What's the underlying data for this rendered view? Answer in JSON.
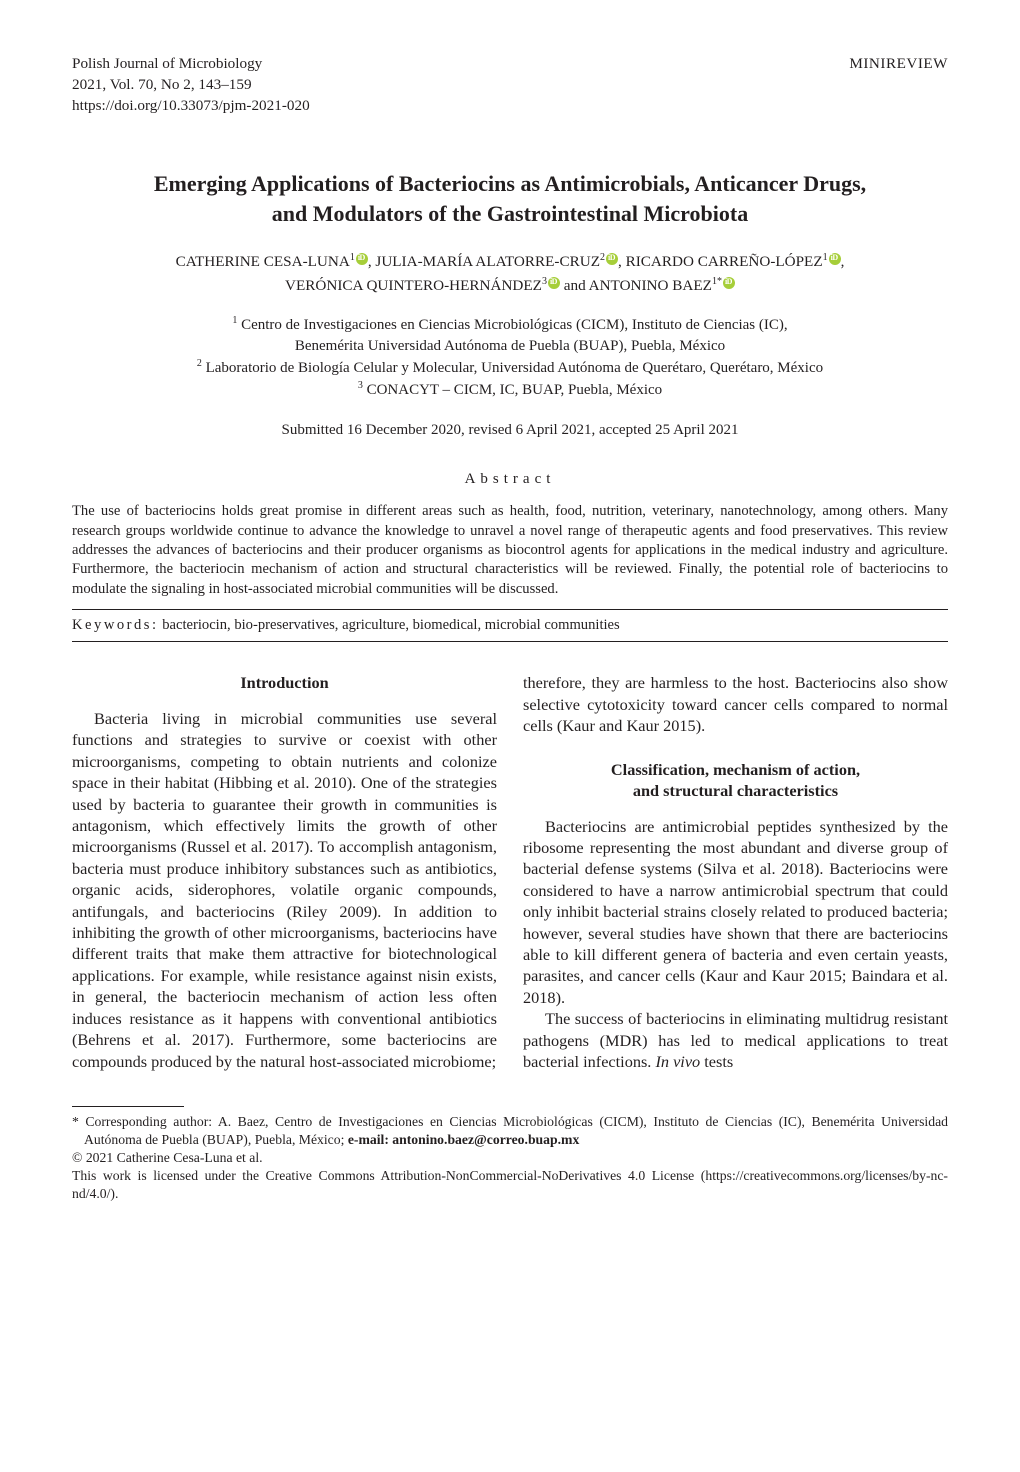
{
  "header": {
    "journal": "Polish Journal of Microbiology",
    "issue": "2021, Vol. 70, No 2, 143–159",
    "doi": "https://doi.org/10.33073/pjm-2021-020",
    "article_type": "MINIREVIEW"
  },
  "title": {
    "line1": "Emerging Applications of Bacteriocins as Antimicrobials, Anticancer Drugs,",
    "line2": "and Modulators of the Gastrointestinal Microbiota"
  },
  "authors": {
    "a1_name": "CATHERINE CESA-LUNA",
    "a1_aff": "1",
    "a2_name": "JULIA-MARÍA ALATORRE-CRUZ",
    "a2_aff": "2",
    "a3_name": "RICARDO CARREÑO-LÓPEZ",
    "a3_aff": "1",
    "a4_name": "VERÓNICA QUINTERO-HERNÁNDEZ",
    "a4_aff": "3",
    "a5_name": "ANTONINO BAEZ",
    "a5_aff": "1",
    "and": " and ",
    "sep": ", "
  },
  "affiliations": {
    "l1": " Centro de Investigaciones en Ciencias Microbiológicas (CICM), Instituto de Ciencias (IC),",
    "l2": "Benemérita Universidad Autónoma de Puebla (BUAP), Puebla, México",
    "l3": " Laboratorio de Biología Celular y Molecular, Universidad Autónoma de Querétaro, Querétaro, México",
    "l4": " CONACYT – CICM, IC, BUAP, Puebla, México",
    "n1": "1",
    "n2": "2",
    "n3": "3"
  },
  "submitted": "Submitted 16 December 2020, revised 6 April 2021, accepted 25 April 2021",
  "abstract": {
    "label": "Abstract",
    "text": "The use of bacteriocins holds great promise in different areas such as health, food, nutrition, veterinary, nanotechnology, among others. Many research groups worldwide continue to advance the knowledge to unravel a novel range of therapeutic agents and food preservatives. This review addresses the advances of bacteriocins and their producer organisms as biocontrol agents for applications in the medical industry and agriculture. Furthermore, the bacteriocin mechanism of action and structural characteristics will be reviewed. Finally, the potential role of bacteriocins to modulate the signaling in host-associated microbial communities will be discussed."
  },
  "keywords": {
    "label": "Keywords:",
    "text": "  bacteriocin, bio-preservatives, agriculture, biomedical, microbial communities"
  },
  "sections": {
    "intro_heading": "Introduction",
    "intro_p1": "Bacteria living in microbial communities use several functions and strategies to survive or coexist with other microorganisms, competing to obtain nutrients and colonize space in their habitat (Hibbing et al. 2010). One of the strategies used by bacteria to guarantee their growth in communities is antagonism, which effectively limits the growth of other microorganisms (Russel et al. 2017). To accomplish antagonism, bacteria must produce inhibitory substances such as antibiotics, organic acids, siderophores, volatile organic compounds, antifungals, and bacteriocins (Riley 2009). In addition to inhibiting the growth of other microorganisms, bacteriocins have different traits that make them attractive for biotechnological applications. For example, while resistance against nisin exists, in general, the bacteriocin mechanism of action less often induces resistance as it happens with conventional antibiotics (Behrens et al. 2017). Furthermore, some bacteriocins are compounds produced by the natural host-associated microbiome;",
    "col2_lead": "therefore, they are harmless to the host. Bacteriocins also show selective cytotoxicity toward cancer cells compared to normal cells (Kaur and Kaur 2015).",
    "class_heading_l1": "Classification, mechanism of action,",
    "class_heading_l2": "and structural characteristics",
    "class_p1": "Bacteriocins are antimicrobial peptides synthesized by the ribosome representing the most abundant and diverse group of bacterial defense systems (Silva et al. 2018). Bacteriocins were considered to have a narrow antimicrobial spectrum that could only inhibit bacterial strains closely related to produced bacteria; however, several studies have shown that there are bacteriocins able to kill different genera of bacteria and even certain yeasts, parasites, and cancer cells (Kaur and Kaur 2015; Baindara et al. 2018).",
    "class_p2a": "The success of bacteriocins in eliminating multidrug resistant pathogens (MDR) has led to medical applications to treat bacterial infections. ",
    "class_p2b": "In vivo",
    "class_p2c": " tests"
  },
  "footnotes": {
    "f1a": "* Corresponding author:  A. Baez, Centro de Investigaciones en Ciencias Microbiológicas (CICM), Instituto de Ciencias (IC), Benemérita Universidad Autónoma de Puebla (BUAP), Puebla, México; ",
    "f1b": "e-mail: antonino.baez@correo.buap.mx",
    "f2": "© 2021 Catherine Cesa-Luna et al.",
    "f3": "This work is licensed under the Creative Commons Attribution-NonCommercial-NoDerivatives 4.0 License (https://creativecommons.org/licenses/by-nc-nd/4.0/)."
  },
  "style": {
    "accent_orcid": "#a6ce39",
    "text_color": "#231f20",
    "body_fontsize": 16.3,
    "footnote_fontsize": 13.7,
    "title_fontsize": 22
  }
}
